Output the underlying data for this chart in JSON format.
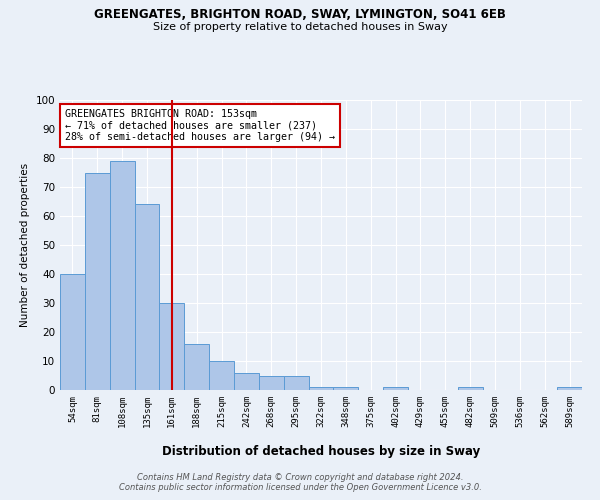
{
  "title1": "GREENGATES, BRIGHTON ROAD, SWAY, LYMINGTON, SO41 6EB",
  "title2": "Size of property relative to detached houses in Sway",
  "xlabel": "Distribution of detached houses by size in Sway",
  "ylabel": "Number of detached properties",
  "categories": [
    "54sqm",
    "81sqm",
    "108sqm",
    "135sqm",
    "161sqm",
    "188sqm",
    "215sqm",
    "242sqm",
    "268sqm",
    "295sqm",
    "322sqm",
    "348sqm",
    "375sqm",
    "402sqm",
    "429sqm",
    "455sqm",
    "482sqm",
    "509sqm",
    "536sqm",
    "562sqm",
    "589sqm"
  ],
  "values": [
    40,
    75,
    79,
    64,
    30,
    16,
    10,
    6,
    5,
    5,
    1,
    1,
    0,
    1,
    0,
    0,
    1,
    0,
    0,
    0,
    1
  ],
  "bar_color": "#aec6e8",
  "bar_edge_color": "#5b9bd5",
  "vline_x": 4.0,
  "vline_color": "#cc0000",
  "annotation_title": "GREENGATES BRIGHTON ROAD: 153sqm",
  "annotation_line1": "← 71% of detached houses are smaller (237)",
  "annotation_line2": "28% of semi-detached houses are larger (94) →",
  "annotation_box_color": "#cc0000",
  "ylim": [
    0,
    100
  ],
  "yticks": [
    0,
    10,
    20,
    30,
    40,
    50,
    60,
    70,
    80,
    90,
    100
  ],
  "footer": "Contains HM Land Registry data © Crown copyright and database right 2024.\nContains public sector information licensed under the Open Government Licence v3.0.",
  "bg_color": "#eaf0f8",
  "grid_color": "#ffffff"
}
